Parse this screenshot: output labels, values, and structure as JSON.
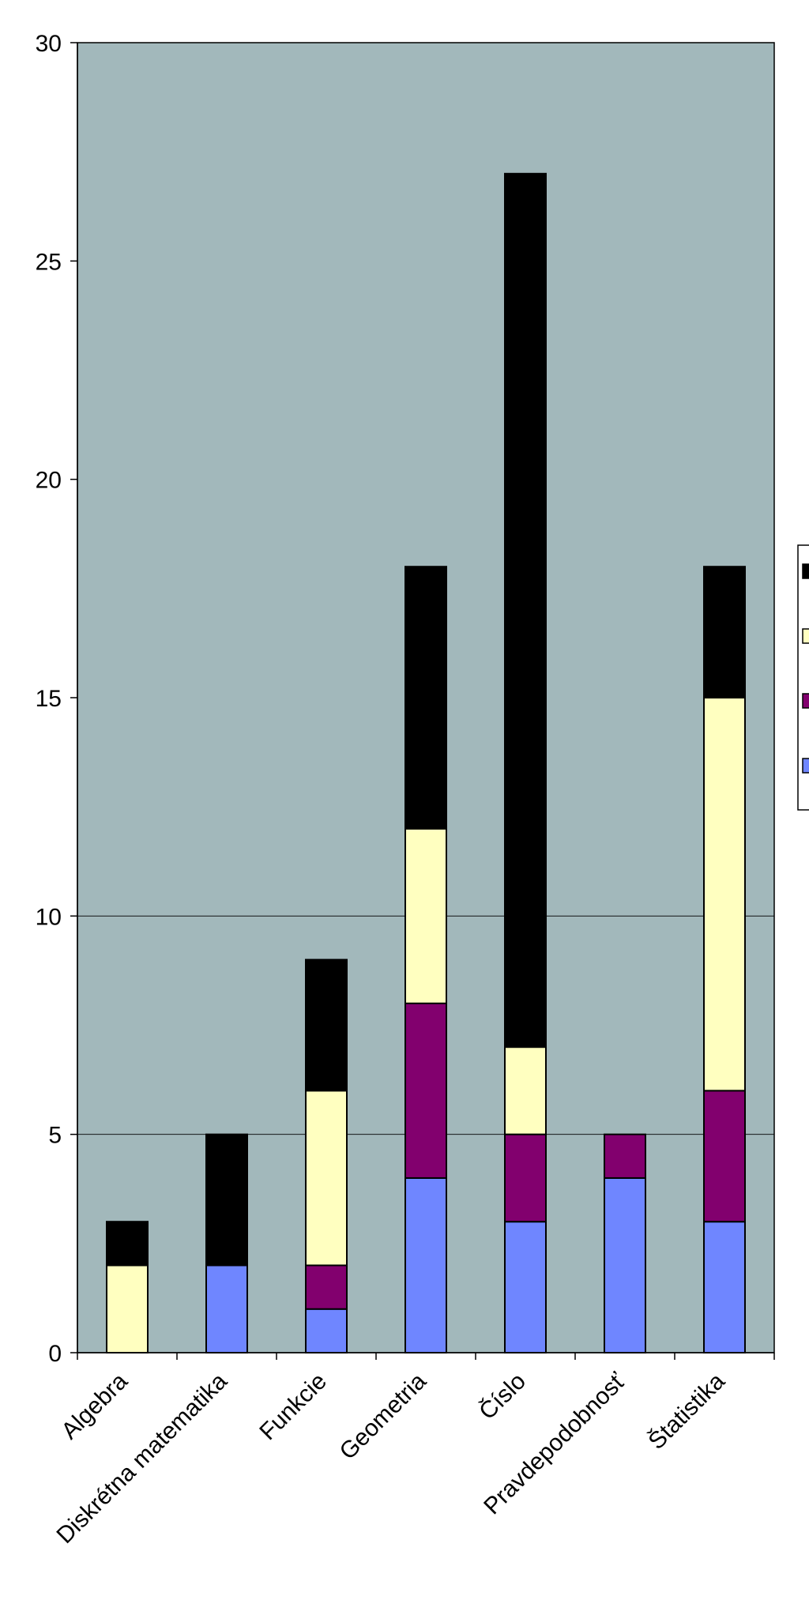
{
  "chart_data": {
    "type": "bar",
    "stacked": true,
    "categories": [
      "Algebra",
      "Diskrétna matematika",
      "Funkcie",
      "Geometria",
      "Číslo",
      "Pravdepodobnosť",
      "Štatistika"
    ],
    "series": [
      {
        "values": [
          0,
          2,
          1,
          4,
          3,
          4,
          3
        ],
        "color": "#6f86ff"
      },
      {
        "values": [
          0,
          0,
          1,
          4,
          2,
          1,
          3
        ],
        "color": "#82006e"
      },
      {
        "values": [
          2,
          0,
          4,
          4,
          2,
          0,
          9
        ],
        "color": "#ffffc0"
      },
      {
        "values": [
          1,
          3,
          3,
          6,
          20,
          0,
          3
        ],
        "color": "#000000"
      }
    ],
    "title": "",
    "xlabel": "",
    "ylabel": "",
    "ylim": [
      0,
      30
    ],
    "yticks": [
      0,
      5,
      10,
      15,
      20,
      25,
      30
    ],
    "gridlines": [
      5,
      10
    ],
    "plot_background": "#a2b8bb",
    "legend_position": "right"
  }
}
